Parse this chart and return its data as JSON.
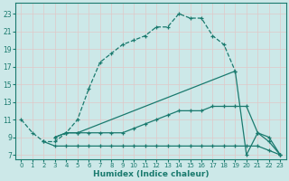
{
  "xlabel": "Humidex (Indice chaleur)",
  "bg_color": "#cce8e8",
  "grid_color": "#d4e8e8",
  "line_color": "#1a7a6e",
  "xlim": [
    -0.5,
    23.5
  ],
  "ylim": [
    6.5,
    24.2
  ],
  "xticks": [
    0,
    1,
    2,
    3,
    4,
    5,
    6,
    7,
    8,
    9,
    10,
    11,
    12,
    13,
    14,
    15,
    16,
    17,
    18,
    19,
    20,
    21,
    22,
    23
  ],
  "yticks": [
    7,
    9,
    11,
    13,
    15,
    17,
    19,
    21,
    23
  ],
  "line1_x": [
    0,
    1,
    2,
    3,
    4,
    5,
    6,
    7,
    8,
    9,
    10,
    11,
    12,
    13,
    14,
    15,
    16,
    17,
    18,
    19
  ],
  "line1_y": [
    11,
    9.5,
    8.5,
    8.5,
    9.5,
    11,
    14.5,
    17.5,
    18.5,
    19.5,
    20,
    20.5,
    21.5,
    21.5,
    23,
    22.5,
    22.5,
    20.5,
    19.5,
    16.5
  ],
  "line2_x": [
    3,
    4,
    5,
    19,
    20,
    21,
    22,
    23
  ],
  "line2_y": [
    9,
    9.5,
    9.5,
    16.5,
    7,
    9.5,
    8.5,
    7
  ],
  "line3_x": [
    3,
    4,
    5,
    6,
    7,
    8,
    9,
    10,
    11,
    12,
    13,
    14,
    15,
    16,
    17,
    18,
    19,
    20,
    21,
    22,
    23
  ],
  "line3_y": [
    9,
    9.5,
    9.5,
    9.5,
    9.5,
    9.5,
    9.5,
    10,
    10.5,
    11,
    11.5,
    12,
    12,
    12,
    12.5,
    12.5,
    12.5,
    12.5,
    9.5,
    9,
    7
  ],
  "line4_x": [
    2,
    3,
    4,
    5,
    6,
    7,
    8,
    9,
    10,
    11,
    12,
    13,
    14,
    15,
    16,
    17,
    18,
    19,
    20,
    21,
    22,
    23
  ],
  "line4_y": [
    8.5,
    8,
    8,
    8,
    8,
    8,
    8,
    8,
    8,
    8,
    8,
    8,
    8,
    8,
    8,
    8,
    8,
    8,
    8,
    8,
    7.5,
    7
  ]
}
